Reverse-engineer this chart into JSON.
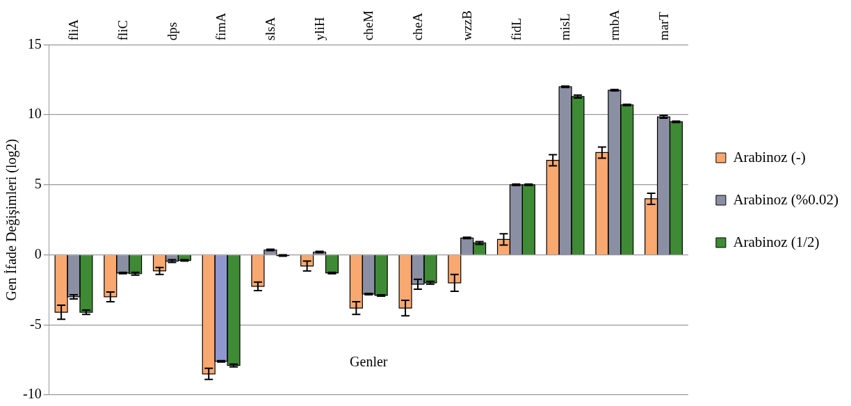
{
  "chart_data": {
    "type": "bar",
    "xlabel": "Genler",
    "ylabel": "Gen İfade Değişimleri (log2)",
    "categories": [
      "fliA",
      "fliC",
      "dps",
      "fimA",
      "slsA",
      "yliH",
      "cheM",
      "cheA",
      "wzzB",
      "fidL",
      "misL",
      "rmbA",
      "marT"
    ],
    "series": [
      {
        "name": "Arabinoz (-)",
        "color": "#f9a870",
        "values": [
          -4.1,
          -3.0,
          -1.15,
          -8.5,
          -2.25,
          -0.8,
          -3.8,
          -3.8,
          -2.0,
          1.1,
          6.75,
          7.3,
          4.0
        ],
        "errors": [
          0.5,
          0.35,
          0.25,
          0.4,
          0.3,
          0.35,
          0.45,
          0.55,
          0.6,
          0.4,
          0.4,
          0.4,
          0.4
        ]
      },
      {
        "name": "Arabinoz (%0.02)",
        "color": "#8a8fa3",
        "colors": [
          "#8a8fa3",
          "#8a8fa3",
          "#8a8fa3",
          "#8f97d0",
          "#8a8fa3",
          "#8a8fa3",
          "#8a8fa3",
          "#8a8fa3",
          "#8a8fa3",
          "#8a8fa3",
          "#8a8fa3",
          "#8a8fa3",
          "#8a8fa3"
        ],
        "values": [
          -3.0,
          -1.3,
          -0.45,
          -7.6,
          0.35,
          0.2,
          -2.8,
          -2.1,
          1.2,
          5.0,
          12.0,
          11.75,
          9.85
        ],
        "errors": [
          0.15,
          0.05,
          0.1,
          0.05,
          0.05,
          0.05,
          0.05,
          0.35,
          0.05,
          0.05,
          0.05,
          0.05,
          0.1
        ]
      },
      {
        "name": "Arabinoz (1/2)",
        "color": "#3f8a34",
        "values": [
          -4.1,
          -1.35,
          -0.4,
          -7.9,
          -0.05,
          -1.3,
          -2.9,
          -2.0,
          0.85,
          5.0,
          11.3,
          10.7,
          9.5
        ],
        "errors": [
          0.15,
          0.1,
          0.05,
          0.1,
          0.05,
          0.05,
          0.05,
          0.1,
          0.1,
          0.05,
          0.1,
          0.05,
          0.05
        ]
      }
    ],
    "ylim": [
      -10,
      15
    ],
    "yticks": [
      -10,
      -5,
      0,
      5,
      10,
      15
    ],
    "grid": "y",
    "legend": "right"
  }
}
